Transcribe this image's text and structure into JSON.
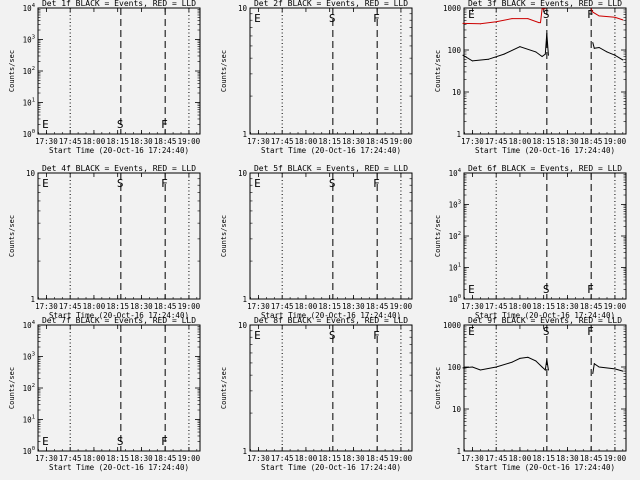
{
  "figure": {
    "xlabel": "Start Time (20-Oct-16 17:24:40)",
    "ylabel": "Counts/sec",
    "x_ticks": [
      "17:30",
      "17:45",
      "18:00",
      "18:15",
      "18:30",
      "18:45",
      "19:00"
    ],
    "markers": {
      "E": "E",
      "S": "S",
      "F": "F"
    }
  },
  "chart_data": [
    {
      "type": "line",
      "title": "Det 1f BLACK = Events, RED = LLD",
      "scale": "log",
      "ylim": [
        1,
        10000
      ],
      "ytick_labels": [
        "10^0",
        "10^1",
        "10^2",
        "10^3",
        "10^4"
      ],
      "has_data": false
    },
    {
      "type": "line",
      "title": "Det 2f BLACK = Events, RED = LLD",
      "scale": "log",
      "ylim": [
        1,
        10
      ],
      "ytick_labels": [
        "1",
        "10"
      ],
      "has_data": false
    },
    {
      "type": "line",
      "title": "Det 3f BLACK = Events, RED = LLD",
      "scale": "log",
      "ylim": [
        1,
        1000
      ],
      "ytick_labels": [
        "1",
        "10",
        "100",
        "1000"
      ],
      "has_data": true,
      "series": [
        {
          "color": "#000000",
          "x": [
            "17:24",
            "17:30",
            "17:40",
            "17:50",
            "18:00",
            "18:10",
            "18:14",
            "18:16",
            "18:17",
            "18:18"
          ],
          "y": [
            75,
            55,
            60,
            80,
            120,
            90,
            70,
            80,
            250,
            75
          ]
        },
        {
          "color": "#cc0000",
          "x": [
            "17:24",
            "17:35",
            "17:45",
            "17:55",
            "18:05",
            "18:12",
            "18:13",
            "18:14",
            "18:15",
            "18:16"
          ],
          "y": [
            430,
            420,
            470,
            560,
            560,
            450,
            450,
            950,
            950,
            950
          ]
        },
        {
          "color": "#000000",
          "x": [
            "18:46",
            "18:47",
            "18:50",
            "18:55",
            "19:00",
            "19:05"
          ],
          "y": [
            150,
            110,
            115,
            90,
            75,
            58
          ]
        },
        {
          "color": "#cc0000",
          "x": [
            "18:45",
            "18:46",
            "18:50",
            "19:00",
            "19:05"
          ],
          "y": [
            950,
            800,
            650,
            600,
            520
          ]
        }
      ]
    },
    {
      "type": "line",
      "title": "Det 4f BLACK = Events, RED = LLD",
      "scale": "log",
      "ylim": [
        1,
        10
      ],
      "ytick_labels": [
        "1",
        "10"
      ],
      "has_data": false
    },
    {
      "type": "line",
      "title": "Det 5f BLACK = Events, RED = LLD",
      "scale": "log",
      "ylim": [
        1,
        10
      ],
      "ytick_labels": [
        "1",
        "10"
      ],
      "has_data": false
    },
    {
      "type": "line",
      "title": "Det 6f BLACK = Events, RED = LLD",
      "scale": "log",
      "ylim": [
        1,
        10000
      ],
      "ytick_labels": [
        "10^0",
        "10^1",
        "10^2",
        "10^3",
        "10^4"
      ],
      "has_data": false
    },
    {
      "type": "line",
      "title": "Det 7f BLACK = Events, RED = LLD",
      "scale": "log",
      "ylim": [
        1,
        10000
      ],
      "ytick_labels": [
        "10^0",
        "10^1",
        "10^2",
        "10^3",
        "10^4"
      ],
      "has_data": false
    },
    {
      "type": "line",
      "title": "Det 8f BLACK = Events, RED = LLD",
      "scale": "log",
      "ylim": [
        1,
        10
      ],
      "ytick_labels": [
        "1",
        "10"
      ],
      "has_data": false
    },
    {
      "type": "line",
      "title": "Det 9f BLACK = Events, RED = LLD",
      "scale": "log",
      "ylim": [
        1,
        1000
      ],
      "ytick_labels": [
        "1",
        "10",
        "100",
        "1000"
      ],
      "has_data": true,
      "series": [
        {
          "color": "#000000",
          "x": [
            "17:24",
            "17:30",
            "17:35",
            "17:45",
            "17:55",
            "18:00",
            "18:05",
            "18:10",
            "18:14",
            "18:16",
            "18:17",
            "18:18"
          ],
          "y": [
            95,
            100,
            85,
            100,
            130,
            160,
            170,
            140,
            100,
            85,
            150,
            85
          ]
        },
        {
          "color": "#000000",
          "x": [
            "18:46",
            "18:47",
            "18:50",
            "19:00",
            "19:05"
          ],
          "y": [
            70,
            120,
            100,
            90,
            80
          ]
        }
      ]
    }
  ]
}
